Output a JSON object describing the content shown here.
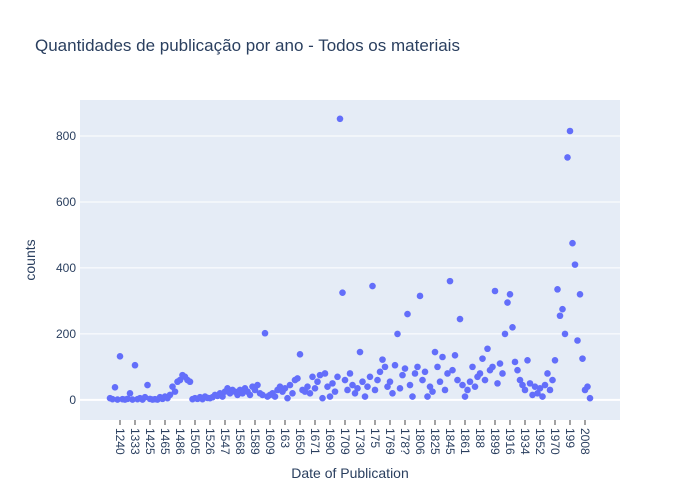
{
  "chart_data": {
    "type": "scatter",
    "title": "Quantidades de publicação por ano - Todos os materiais",
    "x_label": "Date of Publication",
    "y_label": "counts",
    "color": "#636efa",
    "grid": true,
    "ylim": [
      -61,
      909
    ],
    "yticks": [
      0,
      200,
      400,
      600,
      800
    ],
    "categories": [
      null,
      null,
      null,
      null,
      "1240",
      null,
      null,
      null,
      null,
      null,
      "1333",
      null,
      null,
      null,
      null,
      null,
      "1425",
      null,
      null,
      null,
      null,
      null,
      "1465",
      null,
      null,
      null,
      null,
      null,
      "1486",
      null,
      null,
      null,
      null,
      null,
      "1505",
      null,
      null,
      null,
      null,
      null,
      "1526",
      null,
      null,
      null,
      null,
      null,
      "1547",
      null,
      null,
      null,
      null,
      null,
      "1568",
      null,
      null,
      null,
      null,
      null,
      "1589",
      null,
      null,
      null,
      null,
      null,
      "1609",
      null,
      null,
      null,
      null,
      null,
      "163",
      null,
      null,
      null,
      null,
      null,
      "1650",
      null,
      null,
      null,
      null,
      null,
      "1671",
      null,
      null,
      null,
      null,
      null,
      "1690",
      null,
      null,
      null,
      null,
      null,
      "1709",
      null,
      null,
      null,
      null,
      null,
      "1730",
      null,
      null,
      null,
      null,
      null,
      "175",
      null,
      null,
      null,
      null,
      null,
      "1769",
      null,
      null,
      null,
      null,
      null,
      "178?",
      null,
      null,
      null,
      null,
      null,
      "1806",
      null,
      null,
      null,
      null,
      null,
      "1825",
      null,
      null,
      null,
      null,
      null,
      "1845",
      null,
      null,
      null,
      null,
      null,
      "1861",
      null,
      null,
      null,
      null,
      null,
      "188",
      null,
      null,
      null,
      null,
      null,
      "1899",
      null,
      null,
      null,
      null,
      null,
      "1916",
      null,
      null,
      null,
      null,
      null,
      "1934",
      null,
      null,
      null,
      null,
      null,
      "1952",
      null,
      null,
      null,
      null,
      null,
      "1970",
      null,
      null,
      null,
      null,
      null,
      "199",
      null,
      null,
      null,
      null,
      null,
      "2008",
      null,
      null
    ],
    "values": [
      5,
      2,
      38,
      1,
      132,
      2,
      1,
      3,
      20,
      1,
      105,
      2,
      5,
      1,
      8,
      45,
      3,
      1,
      2,
      1,
      8,
      3,
      10,
      5,
      15,
      40,
      25,
      55,
      60,
      75,
      70,
      60,
      55,
      2,
      5,
      3,
      8,
      2,
      10,
      6,
      5,
      8,
      15,
      12,
      20,
      10,
      25,
      35,
      20,
      30,
      25,
      15,
      30,
      20,
      35,
      25,
      15,
      40,
      30,
      45,
      20,
      15,
      202,
      10,
      15,
      20,
      10,
      30,
      40,
      25,
      35,
      5,
      45,
      20,
      60,
      65,
      138,
      30,
      25,
      40,
      20,
      70,
      35,
      55,
      75,
      5,
      80,
      40,
      10,
      50,
      25,
      70,
      852,
      325,
      60,
      30,
      80,
      45,
      20,
      35,
      145,
      55,
      10,
      40,
      70,
      345,
      30,
      60,
      85,
      122,
      100,
      40,
      55,
      20,
      105,
      200,
      35,
      75,
      95,
      260,
      45,
      10,
      80,
      100,
      315,
      60,
      85,
      10,
      40,
      25,
      145,
      100,
      55,
      130,
      30,
      80,
      360,
      90,
      135,
      60,
      245,
      45,
      10,
      30,
      55,
      100,
      40,
      70,
      80,
      125,
      60,
      155,
      90,
      100,
      330,
      50,
      110,
      80,
      200,
      295,
      320,
      220,
      115,
      90,
      60,
      45,
      30,
      120,
      50,
      15,
      40,
      20,
      35,
      10,
      45,
      80,
      30,
      60,
      120,
      335,
      255,
      275,
      200,
      735,
      815,
      475,
      410,
      180,
      320,
      125,
      30,
      40,
      5
    ]
  }
}
